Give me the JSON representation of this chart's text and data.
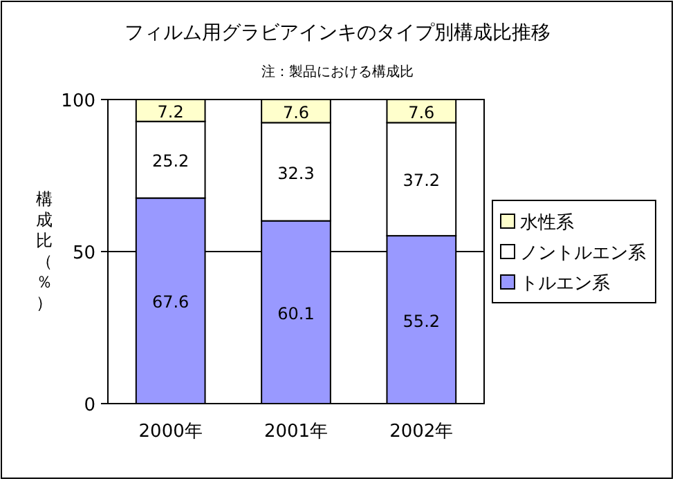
{
  "chart_data": {
    "type": "bar",
    "title": "フィルム用グラビアインキのタイプ別構成比推移",
    "subtitle": "注：製品における構成比",
    "ylabel": "構成比（％）",
    "categories": [
      "2000年",
      "2001年",
      "2002年"
    ],
    "series": [
      {
        "name": "トルエン系",
        "color": "#9999ff",
        "values": [
          67.6,
          60.1,
          55.2
        ]
      },
      {
        "name": "ノントルエン系",
        "color": "#ffffff",
        "values": [
          25.2,
          32.3,
          37.2
        ]
      },
      {
        "name": "水性系",
        "color": "#ffffcc",
        "values": [
          7.2,
          7.6,
          7.6
        ]
      }
    ],
    "stacked": true,
    "ylim": [
      0,
      100
    ],
    "yticks": [
      0,
      50,
      100
    ],
    "grid": "y",
    "legend": "right",
    "data_labels": true
  }
}
